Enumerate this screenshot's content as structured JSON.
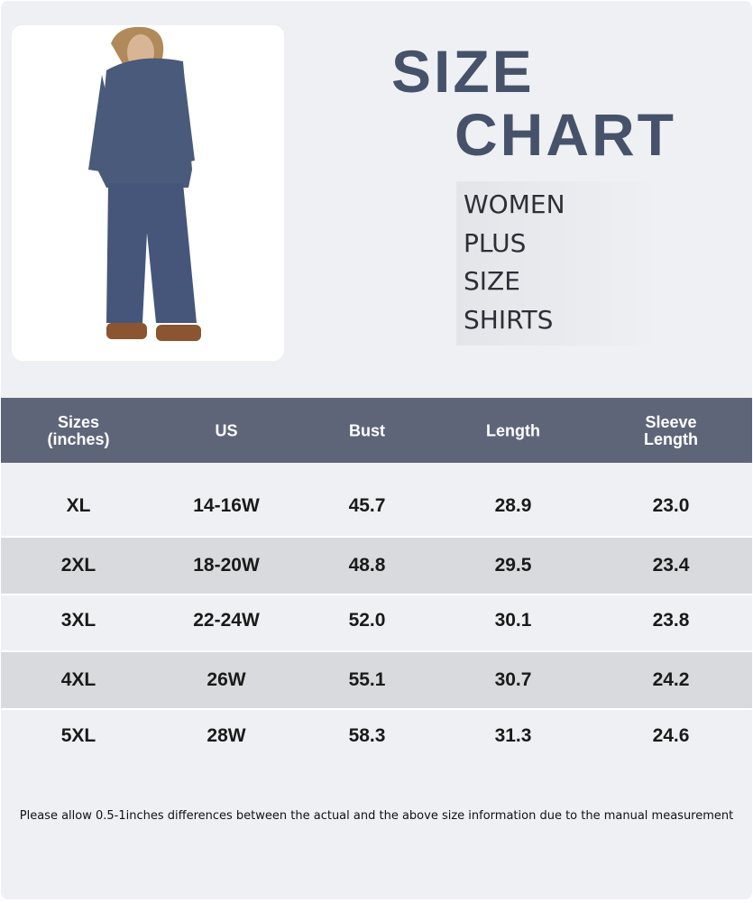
{
  "title": [
    "SIZE",
    "CHART"
  ],
  "subtitle": [
    "WOMEN",
    "PLUS",
    "SIZE",
    "SHIRTS"
  ],
  "table": {
    "header": [
      [
        "Sizes",
        "(inches)"
      ],
      [
        "US"
      ],
      [
        "Bust"
      ],
      [
        "Length"
      ],
      [
        "Sleeve",
        "Length"
      ]
    ],
    "rows": [
      [
        "XL",
        "14-16W",
        "45.7",
        "28.9",
        "23.0"
      ],
      [
        "2XL",
        "18-20W",
        "48.8",
        "29.5",
        "23.4"
      ],
      [
        "3XL",
        "22-24W",
        "52.0",
        "30.1",
        "23.8"
      ],
      [
        "4XL",
        "26W",
        "55.1",
        "30.7",
        "24.2"
      ],
      [
        "5XL",
        "28W",
        "58.3",
        "31.3",
        "24.6"
      ]
    ]
  },
  "note": "Please allow 0.5-1inches differences between the actual and the above size information due to the manual measurement"
}
